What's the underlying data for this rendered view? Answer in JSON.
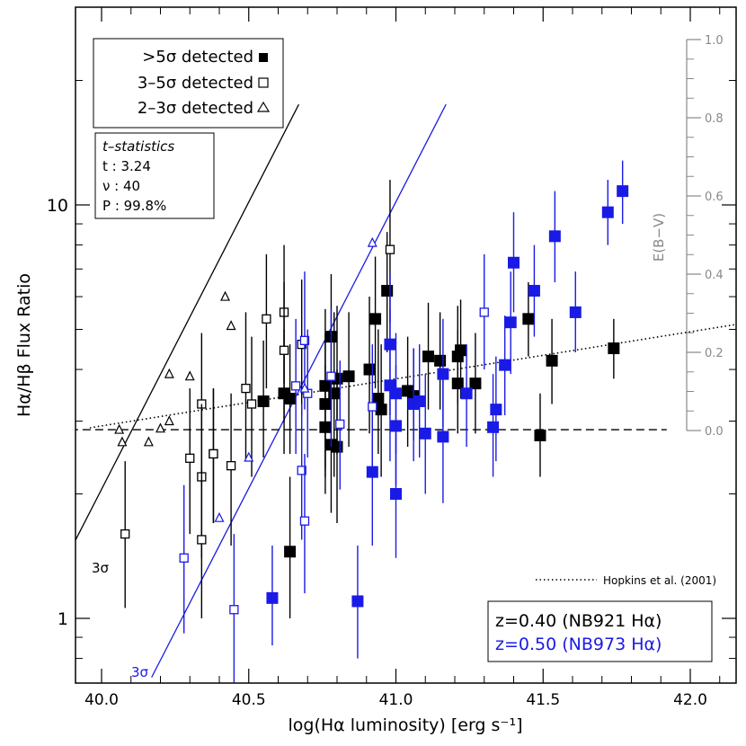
{
  "chart_data": {
    "type": "scatter",
    "xlabel": "log(Hα luminosity) [erg s⁻¹]",
    "ylabel": "Hα/Hβ Flux Ratio",
    "right_axis_label": "E(B−V)",
    "xlim": [
      39.85,
      42.2
    ],
    "ylim": [
      0.72,
      17.5
    ],
    "yscale": "log",
    "x_ticks": [
      "40.0",
      "40.5",
      "41.0",
      "41.5",
      "42.0"
    ],
    "x_tick_values": [
      40.0,
      40.5,
      41.0,
      41.5,
      42.0
    ],
    "y_ticks": [
      "1",
      "10"
    ],
    "y_tick_values": [
      1,
      10
    ],
    "ebv_ticks": [
      "0.0",
      "0.2",
      "0.4",
      "0.6",
      "0.8",
      "1.0"
    ],
    "ebv_tick_values": [
      0.0,
      0.2,
      0.4,
      0.6,
      0.8,
      1.0
    ],
    "legend_markers": {
      "title_lines": [
        ">5σ detected",
        "3–5σ detected",
        "2–3σ detected"
      ],
      "placement": "top-left"
    },
    "stats_box": {
      "lines": [
        "t–statistics",
        "t : 3.24",
        "ν : 40",
        "P : 99.8%"
      ]
    },
    "legend_redshift": {
      "lines": [
        "z=0.40 (NB921 Hα)",
        "z=0.50 (NB973 Hα)"
      ],
      "colors": [
        "#000000",
        "#1a1ae6"
      ],
      "placement": "bottom-right"
    },
    "hopkins_label": "Hopkins et al. (2001)",
    "line_labels": [
      "3σ",
      "3σ"
    ],
    "reference_ratio": 2.86,
    "lines": [
      {
        "name": "3σ",
        "color": "#000000",
        "x": [
          39.85,
          40.67
        ],
        "y": [
          1.27,
          17.5
        ]
      },
      {
        "name": "3σ",
        "color": "#1a1ae6",
        "x": [
          40.17,
          41.17
        ],
        "y": [
          0.72,
          17.5
        ]
      },
      {
        "name": "Hopkins et al. (2001)",
        "style": "dotted",
        "color": "#000000",
        "x": [
          39.96,
          42.2
        ],
        "y": [
          2.89,
          5.2
        ]
      },
      {
        "style": "dashed",
        "color": "#000000",
        "x": [
          39.85,
          41.92
        ],
        "y": [
          2.86,
          2.86
        ]
      }
    ],
    "series": [
      {
        "name": "z=0.40",
        "color": "#000000",
        "points": [
          [
            40.55,
            3.35,
            4.7,
            2.45,
            "filled"
          ],
          [
            40.62,
            3.5,
            5.0,
            2.5,
            "filled"
          ],
          [
            40.64,
            3.4,
            4.6,
            2.5,
            "filled"
          ],
          [
            40.64,
            1.45,
            2.2,
            1.0,
            "filled"
          ],
          [
            40.76,
            3.65,
            5.6,
            2.3,
            "filled"
          ],
          [
            40.76,
            3.3,
            4.9,
            2.2,
            "filled"
          ],
          [
            40.76,
            2.9,
            4.1,
            2.0,
            "filled"
          ],
          [
            40.78,
            4.8,
            6.8,
            3.2,
            "filled"
          ],
          [
            40.79,
            3.5,
            5.5,
            2.2,
            "filled"
          ],
          [
            40.78,
            2.63,
            3.8,
            1.8,
            "filled"
          ],
          [
            40.8,
            3.8,
            5.7,
            2.5,
            "filled"
          ],
          [
            40.8,
            2.6,
            4.0,
            1.7,
            "filled"
          ],
          [
            40.84,
            3.85,
            5.5,
            2.6,
            "filled"
          ],
          [
            40.91,
            4.0,
            6.0,
            2.8,
            "filled"
          ],
          [
            40.93,
            5.3,
            7.5,
            3.6,
            "filled"
          ],
          [
            40.94,
            3.4,
            5.0,
            2.5,
            "filled"
          ],
          [
            40.95,
            3.2,
            4.6,
            2.2,
            "filled"
          ],
          [
            40.97,
            6.2,
            8.6,
            4.4,
            "filled"
          ],
          [
            41.04,
            3.55,
            4.8,
            2.6,
            "filled"
          ],
          [
            41.06,
            3.45,
            4.5,
            2.7,
            "filled"
          ],
          [
            41.11,
            4.3,
            5.8,
            3.2,
            "filled"
          ],
          [
            41.15,
            4.2,
            5.5,
            3.2,
            "filled"
          ],
          [
            41.21,
            4.3,
            5.7,
            3.3,
            "filled"
          ],
          [
            41.22,
            4.45,
            5.9,
            3.4,
            "filled"
          ],
          [
            41.21,
            3.7,
            5.0,
            2.8,
            "filled"
          ],
          [
            41.27,
            3.7,
            4.9,
            2.8,
            "filled"
          ],
          [
            41.45,
            5.3,
            6.5,
            4.3,
            "filled"
          ],
          [
            41.49,
            2.77,
            3.5,
            2.2,
            "filled"
          ],
          [
            41.53,
            4.2,
            5.3,
            3.3,
            "filled"
          ],
          [
            41.74,
            4.5,
            5.3,
            3.8,
            "filled"
          ],
          [
            40.08,
            1.6,
            2.4,
            1.06,
            "open"
          ],
          [
            40.3,
            2.44,
            3.6,
            1.6,
            "open"
          ],
          [
            40.34,
            3.3,
            4.9,
            2.1,
            "open"
          ],
          [
            40.34,
            2.2,
            3.3,
            1.4,
            "open"
          ],
          [
            40.34,
            1.55,
            2.3,
            1.0,
            "open"
          ],
          [
            40.38,
            2.5,
            3.6,
            1.7,
            "open"
          ],
          [
            40.38,
            2.5,
            3.6,
            1.7,
            "open"
          ],
          [
            40.44,
            2.34,
            3.5,
            1.5,
            "open"
          ],
          [
            40.49,
            3.6,
            5.5,
            2.4,
            "open"
          ],
          [
            40.51,
            3.3,
            4.8,
            2.2,
            "open"
          ],
          [
            40.56,
            5.3,
            7.6,
            3.6,
            "open"
          ],
          [
            40.62,
            5.5,
            8.0,
            3.7,
            "open"
          ],
          [
            40.62,
            4.45,
            6.5,
            3.0,
            "open"
          ],
          [
            40.68,
            4.6,
            6.6,
            3.1,
            "open"
          ],
          [
            40.98,
            7.8,
            11.5,
            5.2,
            "open"
          ],
          [
            40.06,
            2.86,
            null,
            null,
            "triangle"
          ],
          [
            40.07,
            2.67,
            null,
            null,
            "triangle"
          ],
          [
            40.16,
            2.67,
            null,
            null,
            "triangle"
          ],
          [
            40.2,
            2.88,
            null,
            null,
            "triangle"
          ],
          [
            40.23,
            3.0,
            null,
            null,
            "triangle"
          ],
          [
            40.23,
            3.9,
            null,
            null,
            "triangle"
          ],
          [
            40.3,
            3.85,
            null,
            null,
            "triangle"
          ],
          [
            40.42,
            6.0,
            null,
            null,
            "triangle"
          ],
          [
            40.44,
            5.1,
            null,
            null,
            "triangle"
          ]
        ]
      },
      {
        "name": "z=0.50",
        "color": "#1a1ae6",
        "points": [
          [
            40.58,
            1.12,
            1.5,
            0.86,
            "filled"
          ],
          [
            40.87,
            1.1,
            1.5,
            0.8,
            "filled"
          ],
          [
            40.92,
            2.26,
            3.4,
            1.5,
            "filled"
          ],
          [
            40.98,
            3.66,
            5.6,
            2.4,
            "filled"
          ],
          [
            40.98,
            4.6,
            6.8,
            3.1,
            "filled"
          ],
          [
            41.0,
            2.0,
            2.8,
            1.4,
            "filled"
          ],
          [
            41.0,
            2.92,
            4.1,
            2.1,
            "filled"
          ],
          [
            41.0,
            3.5,
            4.9,
            2.5,
            "filled"
          ],
          [
            41.06,
            3.3,
            4.5,
            2.4,
            "filled"
          ],
          [
            41.08,
            3.35,
            4.6,
            2.45,
            "filled"
          ],
          [
            41.1,
            2.8,
            3.9,
            2.0,
            "filled"
          ],
          [
            41.16,
            3.9,
            5.3,
            2.9,
            "filled"
          ],
          [
            41.16,
            2.75,
            3.9,
            1.9,
            "filled"
          ],
          [
            41.24,
            3.5,
            4.6,
            2.6,
            "filled"
          ],
          [
            41.33,
            2.9,
            3.9,
            2.2,
            "filled"
          ],
          [
            41.34,
            3.2,
            4.3,
            2.4,
            "filled"
          ],
          [
            41.37,
            4.1,
            5.4,
            3.1,
            "filled"
          ],
          [
            41.39,
            5.2,
            6.9,
            3.9,
            "filled"
          ],
          [
            41.4,
            7.25,
            9.6,
            5.5,
            "filled"
          ],
          [
            41.47,
            6.2,
            8.0,
            4.8,
            "filled"
          ],
          [
            41.54,
            8.4,
            10.8,
            6.5,
            "filled"
          ],
          [
            41.61,
            5.5,
            6.9,
            4.4,
            "filled"
          ],
          [
            41.72,
            9.6,
            11.5,
            8.0,
            "filled"
          ],
          [
            41.77,
            10.8,
            12.8,
            9.0,
            "filled"
          ],
          [
            40.28,
            1.4,
            2.1,
            0.92,
            "open"
          ],
          [
            40.45,
            1.05,
            1.6,
            0.7,
            "open"
          ],
          [
            40.66,
            3.65,
            5.3,
            2.5,
            "open"
          ],
          [
            40.68,
            2.28,
            3.3,
            1.55,
            "open"
          ],
          [
            40.69,
            4.7,
            6.9,
            3.2,
            "open"
          ],
          [
            40.69,
            1.72,
            2.5,
            1.15,
            "open"
          ],
          [
            40.7,
            3.5,
            5.0,
            2.45,
            "open"
          ],
          [
            40.78,
            3.85,
            5.6,
            2.6,
            "open"
          ],
          [
            40.81,
            2.95,
            4.2,
            2.05,
            "open"
          ],
          [
            40.92,
            3.25,
            4.6,
            2.3,
            "open"
          ],
          [
            41.3,
            5.5,
            7.6,
            4.0,
            "open"
          ],
          [
            40.4,
            1.75,
            null,
            null,
            "triangle"
          ],
          [
            40.5,
            2.45,
            null,
            null,
            "triangle"
          ],
          [
            40.69,
            3.6,
            null,
            null,
            "triangle"
          ],
          [
            40.92,
            8.1,
            null,
            null,
            "triangle"
          ]
        ]
      }
    ]
  }
}
